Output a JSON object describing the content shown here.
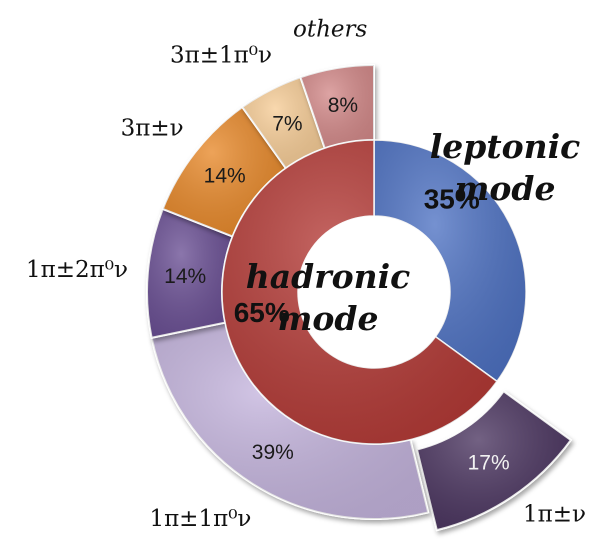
{
  "chart_data": {
    "type": "pie",
    "inner_ring": {
      "series": [
        {
          "name": "leptonic mode",
          "name_lines": [
            "leptonic",
            "mode"
          ],
          "value": 35,
          "label": "35%",
          "color": "#4e72c3"
        },
        {
          "name": "hadronic mode",
          "name_lines": [
            "hadronic",
            "mode"
          ],
          "value": 65,
          "label": "65%",
          "color": "#b43a36"
        }
      ]
    },
    "outer_ring": {
      "parent": "hadronic mode",
      "series": [
        {
          "name": "1π±ν",
          "value": 17,
          "label": "17%",
          "color": "#4b3561"
        },
        {
          "name": "1π±1π⁰ν",
          "value": 39,
          "label": "39%",
          "color": "#c5b5de"
        },
        {
          "name": "1π±2π⁰ν",
          "value": 14,
          "label": "14%",
          "color": "#6b4f94"
        },
        {
          "name": "3π±ν",
          "value": 14,
          "label": "14%",
          "color": "#e8892a"
        },
        {
          "name": "3π±1π⁰ν",
          "value": 7,
          "label": "7%",
          "color": "#f7cd97"
        },
        {
          "name": "others",
          "value": 8,
          "label": "8%",
          "color": "#d48a8a"
        }
      ]
    }
  }
}
